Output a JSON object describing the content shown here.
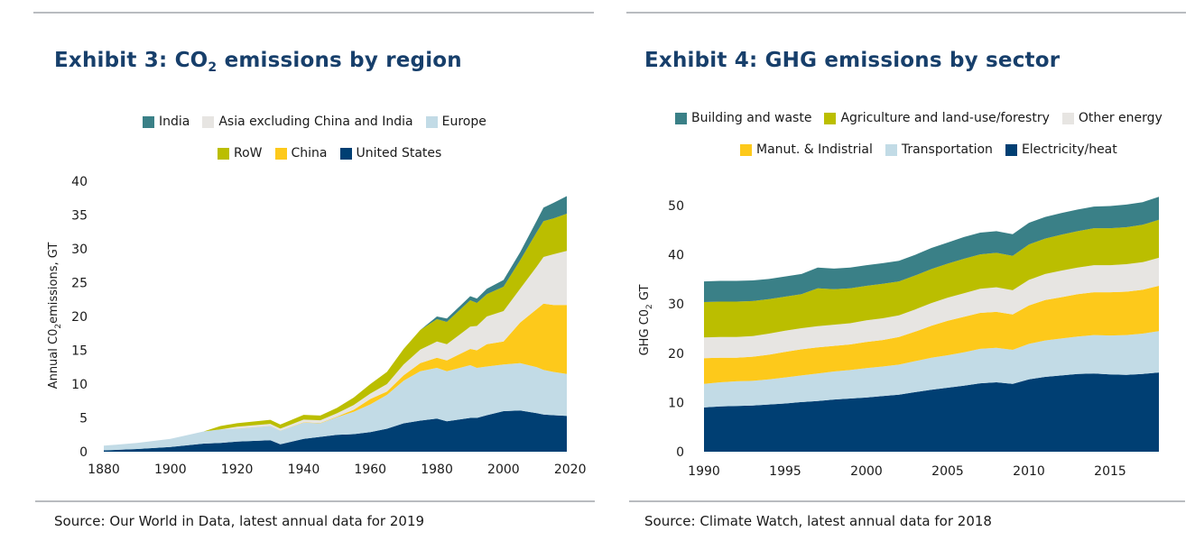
{
  "chart_data": [
    {
      "id": "exhibit3",
      "type": "area",
      "stacked": true,
      "title_prefix": "Exhibit 3: CO",
      "title_sub": "2",
      "title_suffix": " emissions by region",
      "ylabel_prefix": "Annual C0",
      "ylabel_sub": "2",
      "ylabel_suffix": "emissions, GT",
      "xlabel": "",
      "xlim": [
        1880,
        2019
      ],
      "ylim": [
        0,
        40
      ],
      "xticks": [
        1880,
        1900,
        1920,
        1940,
        1960,
        1980,
        2000,
        2020
      ],
      "yticks": [
        0,
        5,
        10,
        15,
        20,
        25,
        30,
        35,
        40
      ],
      "legend": [
        [
          {
            "name": "India",
            "color": "#3a8087"
          },
          {
            "name": "Asia excluding China and India",
            "color": "#e7e5e2"
          },
          {
            "name": "Europe",
            "color": "#c2dbe6"
          }
        ],
        [
          {
            "name": "RoW",
            "color": "#bbbe00"
          },
          {
            "name": "China",
            "color": "#fdc91b"
          },
          {
            "name": "United States",
            "color": "#003f73"
          }
        ]
      ],
      "grid": false,
      "x": [
        1880,
        1890,
        1900,
        1910,
        1915,
        1920,
        1930,
        1933,
        1940,
        1945,
        1950,
        1955,
        1960,
        1965,
        1970,
        1975,
        1980,
        1983,
        1990,
        1992,
        1995,
        2000,
        2005,
        2010,
        2012,
        2015,
        2019
      ],
      "series": [
        {
          "name": "United States",
          "color": "#003f73",
          "values": [
            0.2,
            0.4,
            0.7,
            1.2,
            1.3,
            1.5,
            1.7,
            1.1,
            1.9,
            2.2,
            2.5,
            2.6,
            2.9,
            3.4,
            4.2,
            4.6,
            4.9,
            4.5,
            5.0,
            5.0,
            5.4,
            6.0,
            6.1,
            5.7,
            5.5,
            5.4,
            5.3
          ]
        },
        {
          "name": "Europe",
          "color": "#c2dbe6",
          "values": [
            0.7,
            0.9,
            1.2,
            1.8,
            2.0,
            1.9,
            2.1,
            2.0,
            2.4,
            2.0,
            2.6,
            3.3,
            4.1,
            5.0,
            6.3,
            7.3,
            7.5,
            7.4,
            7.8,
            7.4,
            7.2,
            6.9,
            7.0,
            6.8,
            6.6,
            6.4,
            6.2
          ]
        },
        {
          "name": "China",
          "color": "#fdc91b",
          "values": [
            0,
            0,
            0,
            0,
            0,
            0.01,
            0.02,
            0.02,
            0.05,
            0.05,
            0.08,
            0.3,
            0.8,
            0.5,
            0.8,
            1.2,
            1.5,
            1.6,
            2.4,
            2.6,
            3.3,
            3.4,
            6.0,
            8.6,
            9.8,
            9.9,
            10.2
          ]
        },
        {
          "name": "Asia excluding China and India",
          "color": "#e7e5e2",
          "values": [
            0,
            0,
            0,
            0,
            0,
            0.3,
            0.3,
            0.3,
            0.4,
            0.4,
            0.5,
            0.7,
            0.8,
            1.1,
            1.6,
            2.0,
            2.4,
            2.4,
            3.3,
            3.6,
            4.1,
            4.5,
            5.0,
            6.3,
            6.9,
            7.5,
            8.0
          ]
        },
        {
          "name": "RoW",
          "color": "#bbbe00",
          "values": [
            0,
            0,
            0,
            0,
            0.5,
            0.5,
            0.6,
            0.6,
            0.7,
            0.7,
            0.8,
            1.1,
            1.4,
            1.8,
            2.3,
            2.9,
            3.3,
            3.3,
            3.9,
            3.4,
            3.3,
            3.6,
            4.2,
            5.1,
            5.3,
            5.3,
            5.5
          ]
        },
        {
          "name": "India",
          "color": "#3a8087",
          "values": [
            0,
            0,
            0,
            0,
            0,
            0,
            0,
            0,
            0,
            0,
            0,
            0,
            0,
            0,
            0,
            0,
            0.4,
            0.5,
            0.6,
            0.65,
            0.8,
            1.0,
            1.2,
            1.7,
            2.0,
            2.3,
            2.6
          ]
        }
      ]
    },
    {
      "id": "exhibit4",
      "type": "area",
      "stacked": true,
      "title": "Exhibit 4: GHG emissions by sector",
      "ylabel_prefix": "GHG C0",
      "ylabel_sub": "2",
      "ylabel_suffix": " GT",
      "xlabel": "",
      "xlim": [
        1990,
        2018
      ],
      "ylim": [
        0,
        50
      ],
      "xticks": [
        1990,
        1995,
        2000,
        2005,
        2010,
        2015
      ],
      "yticks": [
        0,
        10,
        20,
        30,
        40,
        50
      ],
      "legend": [
        [
          {
            "name": "Building and waste",
            "color": "#3a8087"
          },
          {
            "name": "Agriculture and land-use/forestry",
            "color": "#bbbe00"
          },
          {
            "name": "Other energy",
            "color": "#e7e5e2"
          }
        ],
        [
          {
            "name": "Manut. & Indistrial",
            "color": "#fdc91b"
          },
          {
            "name": "Transportation",
            "color": "#c2dbe6"
          },
          {
            "name": "Electricity/heat",
            "color": "#003f73"
          }
        ]
      ],
      "grid": false,
      "x": [
        1990,
        1991,
        1992,
        1993,
        1994,
        1995,
        1996,
        1997,
        1998,
        1999,
        2000,
        2001,
        2002,
        2003,
        2004,
        2005,
        2006,
        2007,
        2008,
        2009,
        2010,
        2011,
        2012,
        2013,
        2014,
        2015,
        2016,
        2017,
        2018
      ],
      "series": [
        {
          "name": "Electricity/heat",
          "color": "#003f73",
          "values": [
            9.0,
            9.2,
            9.3,
            9.4,
            9.6,
            9.8,
            10.1,
            10.3,
            10.6,
            10.8,
            11.0,
            11.3,
            11.6,
            12.1,
            12.6,
            13.0,
            13.4,
            13.9,
            14.1,
            13.8,
            14.7,
            15.2,
            15.5,
            15.8,
            15.9,
            15.7,
            15.6,
            15.8,
            16.1
          ]
        },
        {
          "name": "Transportation",
          "color": "#c2dbe6",
          "values": [
            4.8,
            4.9,
            5.0,
            5.0,
            5.1,
            5.3,
            5.4,
            5.6,
            5.7,
            5.8,
            6.0,
            6.0,
            6.1,
            6.3,
            6.5,
            6.6,
            6.8,
            7.0,
            7.0,
            6.9,
            7.2,
            7.4,
            7.5,
            7.6,
            7.8,
            7.9,
            8.1,
            8.2,
            8.4
          ]
        },
        {
          "name": "Manut. & Indistrial",
          "color": "#fdc91b",
          "values": [
            5.2,
            5.0,
            4.8,
            4.9,
            5.0,
            5.2,
            5.3,
            5.3,
            5.2,
            5.2,
            5.3,
            5.4,
            5.6,
            6.0,
            6.5,
            7.0,
            7.2,
            7.3,
            7.3,
            7.2,
            7.8,
            8.2,
            8.4,
            8.6,
            8.7,
            8.8,
            8.8,
            8.9,
            9.2
          ]
        },
        {
          "name": "Other energy",
          "color": "#e7e5e2",
          "values": [
            4.2,
            4.2,
            4.2,
            4.2,
            4.3,
            4.3,
            4.3,
            4.3,
            4.3,
            4.3,
            4.4,
            4.4,
            4.4,
            4.5,
            4.6,
            4.7,
            4.8,
            4.9,
            5.0,
            4.9,
            5.2,
            5.3,
            5.4,
            5.4,
            5.5,
            5.5,
            5.6,
            5.6,
            5.7
          ]
        },
        {
          "name": "Agriculture and land-use/forestry",
          "color": "#bbbe00",
          "values": [
            7.2,
            7.2,
            7.2,
            7.1,
            7.0,
            6.9,
            6.9,
            7.7,
            7.2,
            7.1,
            7.0,
            7.0,
            6.9,
            6.9,
            6.9,
            6.9,
            7.0,
            7.0,
            7.0,
            7.0,
            7.2,
            7.2,
            7.3,
            7.4,
            7.5,
            7.5,
            7.5,
            7.6,
            7.7
          ]
        },
        {
          "name": "Building and waste",
          "color": "#3a8087",
          "values": [
            4.2,
            4.2,
            4.2,
            4.2,
            4.1,
            4.1,
            4.1,
            4.2,
            4.2,
            4.2,
            4.2,
            4.2,
            4.2,
            4.2,
            4.3,
            4.3,
            4.4,
            4.4,
            4.4,
            4.4,
            4.4,
            4.4,
            4.4,
            4.4,
            4.4,
            4.5,
            4.6,
            4.6,
            4.7
          ]
        }
      ]
    }
  ],
  "sources": {
    "left": "Source: Our World in Data, latest annual data for 2019",
    "right": "Source: Climate Watch, latest annual data for 2018"
  }
}
